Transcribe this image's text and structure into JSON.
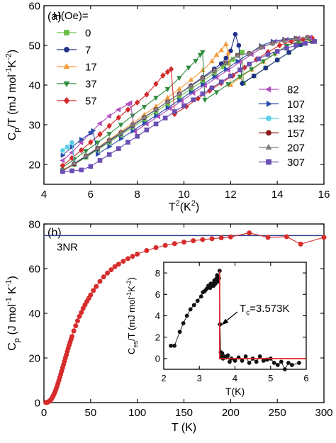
{
  "chart_data": [
    {
      "type": "line",
      "panel_label": "(a)",
      "xlabel": "T",
      "xlabel_sup": "2",
      "xlabel_unit": "(K",
      "xlabel_unit_sup": "2",
      "xlabel_unit_close": ")",
      "ylabel_main": "C",
      "ylabel_sub": "p",
      "ylabel_rest": "/T (mJ mol",
      "ylabel_sup1": "-1",
      "ylabel_mid": "K",
      "ylabel_sup2": "-2",
      "ylabel_end": ")",
      "xlim": [
        4,
        16
      ],
      "ylim": [
        15,
        60
      ],
      "xticks": [
        4,
        6,
        8,
        10,
        12,
        14,
        16
      ],
      "yticks": [
        20,
        30,
        40,
        50,
        60
      ],
      "legend_title": "H(Oe)=",
      "series": [
        {
          "name": "0",
          "color": "#6cc04a",
          "marker": "square",
          "x": [
            4.8,
            5.3,
            5.8,
            6.3,
            6.8,
            7.3,
            7.8,
            8.3,
            8.8,
            9.3,
            9.8,
            10.3,
            10.8,
            11.3,
            11.7,
            11.9,
            12.1,
            12.3,
            12.45,
            12.5,
            12.55,
            13.0,
            13.5,
            14.0,
            14.5,
            15.0,
            15.5
          ],
          "y": [
            18.5,
            20.0,
            21.8,
            23.7,
            25.6,
            27.5,
            29.4,
            31.3,
            33.3,
            35.2,
            37.1,
            39.0,
            41.0,
            43.0,
            44.6,
            45.5,
            46.5,
            47.5,
            48.1,
            48.3,
            40.5,
            42.3,
            44.3,
            46.3,
            48.2,
            50.2,
            51.0
          ]
        },
        {
          "name": "7",
          "color": "#1f2f8a",
          "marker": "circle",
          "x": [
            4.8,
            5.3,
            5.8,
            6.3,
            6.8,
            7.3,
            7.8,
            8.3,
            8.8,
            9.3,
            9.8,
            10.3,
            10.8,
            11.3,
            11.6,
            11.8,
            12.0,
            12.2,
            12.35,
            12.5,
            13.0,
            13.5,
            14.0,
            14.5,
            15.0,
            15.5
          ],
          "y": [
            18.5,
            20.1,
            22.0,
            23.9,
            25.9,
            27.8,
            29.8,
            31.8,
            33.8,
            35.8,
            37.8,
            39.9,
            41.9,
            44.1,
            45.4,
            46.8,
            48.6,
            52.8,
            50.0,
            40.4,
            42.3,
            44.3,
            46.3,
            48.2,
            50.2,
            51.0
          ]
        },
        {
          "name": "17",
          "color": "#f39c3c",
          "marker": "triangle-up",
          "x": [
            4.8,
            5.3,
            5.8,
            6.3,
            6.8,
            7.3,
            7.8,
            8.3,
            8.8,
            9.3,
            9.8,
            10.3,
            10.8,
            11.2,
            11.4,
            11.6,
            11.8,
            11.9,
            12.0,
            12.4,
            12.9,
            13.4,
            13.9,
            14.4,
            14.9,
            15.4
          ],
          "y": [
            18.6,
            20.3,
            22.2,
            24.2,
            26.3,
            28.3,
            30.4,
            32.5,
            34.6,
            36.8,
            39.0,
            41.3,
            43.7,
            46.0,
            47.6,
            48.8,
            50.3,
            48.0,
            40.0,
            41.9,
            43.9,
            45.9,
            47.9,
            49.9,
            51.0,
            51.5
          ]
        },
        {
          "name": "37",
          "color": "#2e8b3e",
          "marker": "triangle-down",
          "x": [
            4.8,
            5.3,
            5.8,
            6.3,
            6.8,
            7.3,
            7.8,
            8.3,
            8.8,
            9.3,
            9.8,
            10.2,
            10.5,
            10.7,
            10.8,
            10.9,
            11.4,
            11.9,
            12.4,
            12.9,
            13.4,
            13.9,
            14.4,
            14.9,
            15.4
          ],
          "y": [
            19.3,
            21.3,
            23.4,
            25.5,
            27.7,
            30.0,
            32.3,
            34.5,
            36.8,
            39.0,
            41.8,
            44.4,
            46.1,
            47.6,
            48.3,
            36.3,
            38.2,
            40.2,
            42.1,
            44.0,
            46.0,
            47.9,
            49.9,
            51.0,
            51.5
          ]
        },
        {
          "name": "57",
          "color": "#d22b2b",
          "marker": "diamond",
          "x": [
            4.8,
            5.2,
            5.6,
            6.0,
            6.4,
            6.8,
            7.2,
            7.6,
            8.0,
            8.4,
            8.8,
            9.1,
            9.3,
            9.45,
            9.6,
            10.1,
            10.6,
            11.1,
            11.6,
            12.1,
            12.6,
            13.1,
            13.6,
            14.1,
            14.6,
            15.1,
            15.5
          ],
          "y": [
            19.7,
            21.6,
            23.6,
            25.6,
            27.6,
            29.7,
            31.8,
            33.8,
            35.6,
            37.6,
            40.3,
            42.4,
            43.3,
            44.0,
            32.7,
            34.6,
            36.6,
            38.6,
            40.5,
            42.4,
            44.4,
            46.4,
            48.3,
            50.0,
            51.0,
            51.5,
            51.8
          ]
        },
        {
          "name": "82",
          "color": "#b24fc0",
          "marker": "triangle-left",
          "x": [
            4.8,
            5.2,
            5.6,
            6.0,
            6.4,
            6.8,
            7.2,
            7.6,
            7.7,
            7.9,
            8.4,
            8.9,
            9.4,
            9.9,
            10.4,
            10.9,
            11.4,
            11.9,
            12.4,
            12.9,
            13.4,
            13.9,
            14.4,
            14.9,
            15.4
          ],
          "y": [
            21.0,
            23.0,
            25.5,
            28.0,
            30.3,
            32.2,
            33.8,
            35.2,
            35.5,
            28.3,
            30.2,
            32.1,
            34.1,
            36.0,
            38.0,
            39.9,
            41.9,
            43.8,
            45.8,
            47.7,
            49.6,
            51.0,
            51.5,
            51.8,
            52.0
          ]
        },
        {
          "name": "107",
          "color": "#2b4fa8",
          "marker": "triangle-right",
          "x": [
            4.8,
            5.2,
            5.6,
            6.0,
            6.1,
            6.3,
            6.8,
            7.3,
            7.8,
            8.3,
            8.8,
            9.3,
            9.8,
            10.3,
            10.8,
            11.3,
            11.8,
            12.3,
            12.8,
            13.3,
            13.8,
            14.3,
            14.8,
            15.3
          ],
          "y": [
            22.3,
            24.4,
            26.3,
            27.9,
            28.5,
            22.6,
            24.5,
            26.5,
            28.4,
            30.4,
            32.3,
            34.3,
            36.2,
            38.2,
            40.1,
            42.1,
            44.0,
            46.0,
            47.9,
            49.9,
            51.0,
            51.5,
            51.8,
            52.0
          ]
        },
        {
          "name": "132",
          "color": "#5bd0e8",
          "marker": "hexagon",
          "x": [
            4.8,
            5.0,
            5.2,
            5.3,
            5.8,
            6.3,
            6.8,
            7.3,
            7.8,
            8.3,
            8.8,
            9.3,
            9.8,
            10.3,
            10.8,
            11.3,
            11.8,
            12.3,
            12.8,
            13.3,
            13.8,
            14.3,
            14.8,
            15.3
          ],
          "y": [
            23.5,
            24.4,
            25.5,
            20.3,
            22.2,
            24.1,
            26.1,
            28.0,
            30.0,
            31.9,
            33.9,
            35.8,
            37.8,
            39.7,
            41.7,
            43.6,
            45.6,
            47.5,
            48.0,
            49.5,
            50.5,
            51.2,
            51.7,
            52.0
          ]
        },
        {
          "name": "157",
          "color": "#8b1a1a",
          "marker": "circle",
          "x": [
            4.8,
            5.3,
            5.8,
            6.3,
            6.8,
            7.3,
            7.8,
            8.3,
            8.8,
            9.3,
            9.8,
            10.3,
            10.8,
            11.3,
            11.8,
            12.3,
            12.8,
            13.3,
            13.8,
            14.3,
            14.8,
            15.3
          ],
          "y": [
            18.3,
            20.2,
            22.2,
            24.1,
            26.1,
            28.0,
            30.0,
            31.9,
            33.9,
            35.8,
            37.8,
            39.7,
            41.7,
            43.6,
            45.6,
            47.5,
            48.0,
            49.5,
            50.5,
            51.2,
            51.7,
            52.0
          ]
        },
        {
          "name": "207",
          "color": "#7f7f7f",
          "marker": "triangle-up",
          "x": [
            4.8,
            5.3,
            5.8,
            6.3,
            6.8,
            7.3,
            7.8,
            8.3,
            8.8,
            9.3,
            9.8,
            10.3,
            10.8,
            11.3,
            11.8,
            12.3,
            12.8,
            13.3,
            13.8,
            14.3,
            14.8,
            15.3
          ],
          "y": [
            18.4,
            20.3,
            22.2,
            24.1,
            26.1,
            28.0,
            30.0,
            31.9,
            33.9,
            35.8,
            37.8,
            39.7,
            41.7,
            43.6,
            45.6,
            47.5,
            48.0,
            49.5,
            50.5,
            51.2,
            51.7,
            52.0
          ]
        },
        {
          "name": "307",
          "color": "#6a4fb3",
          "marker": "square",
          "x": [
            4.8,
            5.2,
            5.6,
            6.0,
            6.4,
            6.8,
            7.2,
            7.6,
            8.0,
            8.4,
            8.8,
            9.2,
            9.6,
            10.0,
            10.4,
            10.8,
            11.2,
            11.6,
            12.0,
            12.4,
            12.8,
            13.2,
            13.6,
            14.0,
            14.4,
            14.8,
            15.2,
            15.6
          ],
          "y": [
            18.2,
            18.4,
            18.6,
            19.5,
            21.0,
            22.5,
            24.0,
            25.6,
            27.1,
            28.7,
            30.2,
            31.7,
            33.3,
            34.8,
            36.3,
            37.8,
            39.3,
            40.8,
            42.3,
            43.8,
            45.3,
            46.6,
            47.7,
            48.5,
            49.3,
            50.0,
            50.5,
            51.0
          ]
        }
      ]
    },
    {
      "type": "scatter",
      "panel_label": "(b)",
      "xlabel": "T (K)",
      "ylabel_main": "C",
      "ylabel_sub": "p",
      "ylabel_rest": " (J mol",
      "ylabel_sup1": "-1",
      "ylabel_mid": " K",
      "ylabel_sup2": "-1",
      "ylabel_end": ")",
      "xlim": [
        0,
        300
      ],
      "ylim": [
        0,
        80
      ],
      "xticks": [
        0,
        50,
        100,
        150,
        200,
        250,
        300
      ],
      "yticks": [
        0,
        20,
        40,
        60,
        80
      ],
      "reference_line": {
        "label": "3NR",
        "y": 74.8,
        "color": "#2b3f8f"
      },
      "series": [
        {
          "color": "#d62c2c",
          "marker": "circle",
          "x": [
            2,
            3,
            4,
            5,
            6,
            7,
            8,
            9,
            10,
            11,
            12,
            13,
            14,
            15,
            16,
            17,
            18,
            19,
            20,
            21,
            22,
            23,
            24,
            25,
            26,
            27,
            28,
            29,
            30,
            32,
            34,
            36,
            38,
            40,
            42,
            44,
            46,
            48,
            50,
            53,
            56,
            60,
            64,
            68,
            72,
            76,
            80,
            85,
            90,
            95,
            100,
            110,
            120,
            130,
            140,
            150,
            160,
            170,
            180,
            190,
            200,
            220,
            240,
            260,
            275,
            300
          ],
          "y": [
            0.05,
            0.1,
            0.2,
            0.4,
            0.7,
            1.1,
            1.6,
            2.3,
            3.1,
            4.0,
            5.0,
            6.1,
            7.3,
            8.6,
            9.9,
            11.3,
            12.7,
            14.1,
            15.6,
            17.0,
            18.5,
            20.0,
            21.4,
            22.9,
            24.3,
            25.7,
            27.0,
            28.3,
            29.6,
            32.1,
            34.4,
            36.6,
            38.6,
            40.4,
            42.2,
            43.8,
            45.3,
            46.7,
            48.2,
            50.2,
            52.0,
            54.3,
            56.3,
            58.0,
            59.5,
            60.9,
            62.0,
            63.3,
            64.5,
            65.5,
            66.5,
            68.1,
            69.4,
            70.4,
            71.2,
            71.9,
            72.5,
            73.0,
            73.4,
            73.8,
            74.2,
            76.0,
            74.0,
            74.3,
            71.0,
            74.0
          ]
        }
      ]
    },
    {
      "type": "scatter",
      "role": "inset",
      "xlabel": "T(K)",
      "ylabel_main": "C",
      "ylabel_sub": "es",
      "ylabel_rest": "/T (mJ mol",
      "ylabel_sup1": "-1",
      "ylabel_mid": "K",
      "ylabel_sup2": "-2",
      "ylabel_end": ")",
      "xlim": [
        2,
        6
      ],
      "ylim": [
        -1,
        9
      ],
      "xticks": [
        2,
        3,
        4,
        5,
        6
      ],
      "yticks": [
        0,
        2,
        4,
        6,
        8
      ],
      "annotation_main": "T",
      "annotation_sub": "c",
      "annotation_rest": "=3.573K",
      "series": [
        {
          "color": "#111111",
          "marker": "circle",
          "x": [
            2.2,
            2.3,
            2.45,
            2.55,
            2.65,
            2.75,
            2.85,
            2.95,
            3.05,
            3.1,
            3.15,
            3.2,
            3.25,
            3.3,
            3.32,
            3.35,
            3.38,
            3.4,
            3.42,
            3.45,
            3.48,
            3.5,
            3.52,
            3.55,
            3.57,
            3.58,
            3.6,
            3.62,
            3.64,
            3.66,
            3.7,
            3.75,
            3.8,
            3.85,
            3.9,
            4.0,
            4.1,
            4.2,
            4.3,
            4.4,
            4.5,
            4.6,
            4.7,
            4.8,
            4.9,
            5.0,
            5.1,
            5.2,
            5.3,
            5.4,
            5.5,
            5.6,
            5.8
          ],
          "y": [
            1.2,
            1.2,
            2.5,
            3.3,
            4.0,
            4.6,
            5.0,
            5.4,
            5.8,
            6.2,
            6.3,
            6.5,
            6.8,
            6.6,
            7.0,
            6.8,
            7.0,
            6.8,
            7.3,
            7.0,
            7.5,
            7.8,
            7.2,
            7.5,
            8.2,
            3.2,
            0.6,
            0.2,
            0.5,
            0.0,
            0.2,
            0.1,
            0.3,
            -0.3,
            0.0,
            -0.2,
            0.1,
            -0.2,
            0.2,
            -0.4,
            0.0,
            -0.3,
            0.2,
            -0.2,
            -0.1,
            0.0,
            -0.4,
            -0.6,
            -0.3,
            -1.0,
            -0.4,
            -0.6,
            -0.4
          ]
        },
        {
          "color": "#e02020",
          "type": "line",
          "role": "fit",
          "x": [
            3.57,
            3.57,
            3.6,
            6.0
          ],
          "y": [
            8.2,
            0.0,
            0.0,
            0.0
          ]
        }
      ]
    }
  ]
}
